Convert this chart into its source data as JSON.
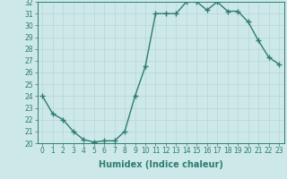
{
  "xlabel": "Humidex (Indice chaleur)",
  "ylabel": "",
  "x": [
    0,
    1,
    2,
    3,
    4,
    5,
    6,
    7,
    8,
    9,
    10,
    11,
    12,
    13,
    14,
    15,
    16,
    17,
    18,
    19,
    20,
    21,
    22,
    23
  ],
  "y": [
    24,
    22.5,
    22,
    21,
    20.3,
    20.1,
    20.2,
    20.2,
    21,
    24,
    26.5,
    31,
    31,
    31,
    32,
    32,
    31.3,
    32,
    31.2,
    31.2,
    30.3,
    28.7,
    27.3,
    26.7
  ],
  "line_color": "#2e7d6e",
  "marker": "+",
  "marker_size": 4,
  "bg_color": "#cce8e8",
  "grid_color": "#b8d4d4",
  "ylim": [
    20,
    32
  ],
  "xlim": [
    -0.5,
    23.5
  ],
  "yticks": [
    20,
    21,
    22,
    23,
    24,
    25,
    26,
    27,
    28,
    29,
    30,
    31,
    32
  ],
  "xticks": [
    0,
    1,
    2,
    3,
    4,
    5,
    6,
    7,
    8,
    9,
    10,
    11,
    12,
    13,
    14,
    15,
    16,
    17,
    18,
    19,
    20,
    21,
    22,
    23
  ],
  "tick_label_fontsize": 5.5,
  "xlabel_fontsize": 7,
  "linewidth": 1.0
}
